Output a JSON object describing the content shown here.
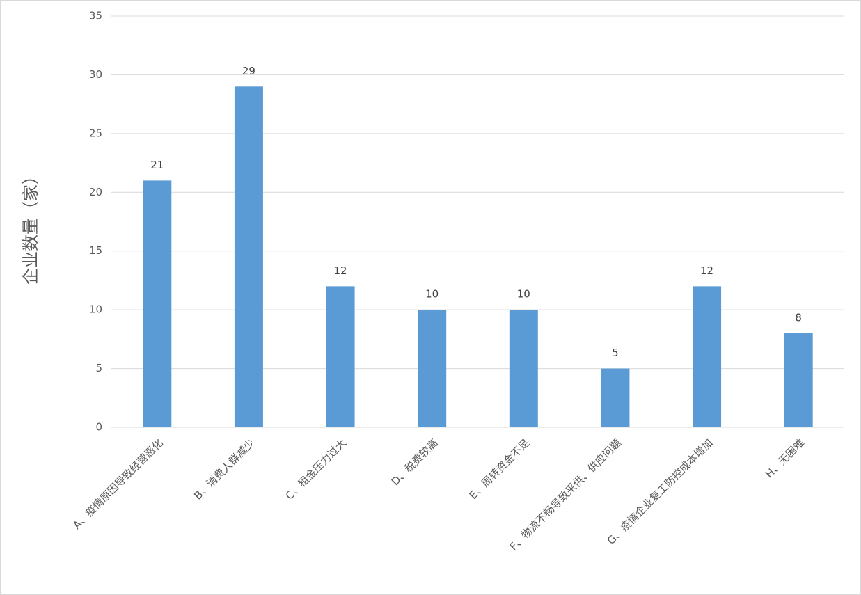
{
  "chart_data": {
    "type": "bar",
    "y_label": "企业数量（家）",
    "categories": [
      "A、疫情原因导致经营恶化",
      "B、消费人群减少",
      "C、租金压力过大",
      "D、税费较高",
      "E、周转资金不足",
      "F、物流不畅导致采供、供应问题",
      "G、疫情企业复工防控成本增加",
      "H、无困难"
    ],
    "values": [
      21,
      29,
      12,
      10,
      10,
      5,
      12,
      8
    ],
    "color": "#5b9bd5",
    "ylim": [
      0,
      35
    ],
    "yticks": [
      0,
      5,
      10,
      15,
      20,
      25,
      30,
      35
    ],
    "grid": true,
    "data_labels": true
  }
}
